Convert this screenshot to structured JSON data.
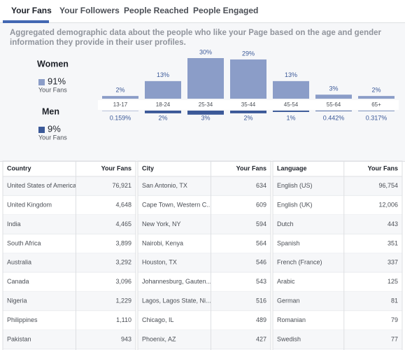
{
  "tabs": [
    "Your Fans",
    "Your Followers",
    "People Reached",
    "People Engaged"
  ],
  "description": "Aggregated demographic data about the people who like your Page based on the age and gender information they provide in their user profiles.",
  "chart_data": {
    "type": "bar",
    "categories": [
      "13-17",
      "18-24",
      "25-34",
      "35-44",
      "45-54",
      "55-64",
      "65+"
    ],
    "series": [
      {
        "name": "Women",
        "color": "#8b9dc8",
        "share": 91,
        "share_label": "91%",
        "sublabel": "Your Fans",
        "values": [
          2,
          13,
          30,
          29,
          13,
          3,
          2
        ],
        "value_labels": [
          "2%",
          "13%",
          "30%",
          "29%",
          "13%",
          "3%",
          "2%"
        ]
      },
      {
        "name": "Men",
        "color": "#3b5998",
        "share": 9,
        "share_label": "9%",
        "sublabel": "Your Fans",
        "values": [
          0.159,
          2,
          3,
          2,
          1,
          0.442,
          0.317
        ],
        "value_labels": [
          "0.159%",
          "2%",
          "3%",
          "2%",
          "1%",
          "0.442%",
          "0.317%"
        ]
      }
    ]
  },
  "tables": [
    {
      "headers": [
        "Country",
        "Your Fans"
      ],
      "rows": [
        [
          "United States of America",
          "76,921"
        ],
        [
          "United Kingdom",
          "4,648"
        ],
        [
          "India",
          "4,465"
        ],
        [
          "South Africa",
          "3,899"
        ],
        [
          "Australia",
          "3,292"
        ],
        [
          "Canada",
          "3,096"
        ],
        [
          "Nigeria",
          "1,229"
        ],
        [
          "Philippines",
          "1,110"
        ],
        [
          "Pakistan",
          "943"
        ]
      ]
    },
    {
      "headers": [
        "City",
        "Your Fans"
      ],
      "rows": [
        [
          "San Antonio, TX",
          "634"
        ],
        [
          "Cape Town, Western C...",
          "609"
        ],
        [
          "New York, NY",
          "594"
        ],
        [
          "Nairobi, Kenya",
          "564"
        ],
        [
          "Houston, TX",
          "546"
        ],
        [
          "Johannesburg, Gauten...",
          "543"
        ],
        [
          "Lagos, Lagos State, Ni...",
          "516"
        ],
        [
          "Chicago, IL",
          "489"
        ],
        [
          "Phoenix, AZ",
          "427"
        ]
      ]
    },
    {
      "headers": [
        "Language",
        "Your Fans"
      ],
      "rows": [
        [
          "English (US)",
          "96,754"
        ],
        [
          "English (UK)",
          "12,006"
        ],
        [
          "Dutch",
          "443"
        ],
        [
          "Spanish",
          "351"
        ],
        [
          "French (France)",
          "337"
        ],
        [
          "Arabic",
          "125"
        ],
        [
          "German",
          "81"
        ],
        [
          "Romanian",
          "79"
        ],
        [
          "Swedish",
          "77"
        ]
      ]
    }
  ]
}
